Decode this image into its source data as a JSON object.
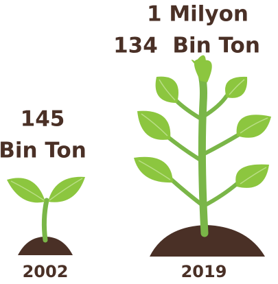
{
  "items": [
    {
      "lines": [
        "145",
        "Bin Ton"
      ],
      "year": "2002"
    },
    {
      "lines": [
        "1 Milyon",
        "134  Bin Ton"
      ],
      "year": "2019"
    }
  ]
}
